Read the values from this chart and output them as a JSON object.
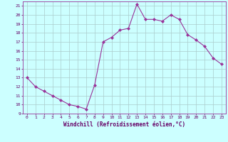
{
  "x_values": [
    0,
    1,
    2,
    3,
    4,
    5,
    6,
    7,
    8,
    9,
    10,
    11,
    12,
    13,
    14,
    15,
    16,
    17,
    18,
    19,
    20,
    21,
    22,
    23
  ],
  "y_values": [
    13,
    12,
    11.5,
    11,
    10.5,
    10,
    9.8,
    9.5,
    12.2,
    17,
    17.5,
    18.3,
    18.5,
    21.2,
    19.5,
    19.5,
    19.3,
    20,
    19.5,
    17.8,
    17.2,
    16.5,
    15.2,
    14.5
  ],
  "line_color": "#993399",
  "marker": "D",
  "marker_size": 2.0,
  "bg_color": "#ccffff",
  "grid_color": "#aacccc",
  "xlabel": "Windchill (Refroidissement éolien,°C)",
  "xlabel_color": "#660066",
  "tick_color": "#660066",
  "ylim": [
    9,
    21.5
  ],
  "xlim": [
    -0.5,
    23.5
  ],
  "yticks": [
    9,
    10,
    11,
    12,
    13,
    14,
    15,
    16,
    17,
    18,
    19,
    20,
    21
  ],
  "xticks": [
    0,
    1,
    2,
    3,
    4,
    5,
    6,
    7,
    8,
    9,
    10,
    11,
    12,
    13,
    14,
    15,
    16,
    17,
    18,
    19,
    20,
    21,
    22,
    23
  ]
}
